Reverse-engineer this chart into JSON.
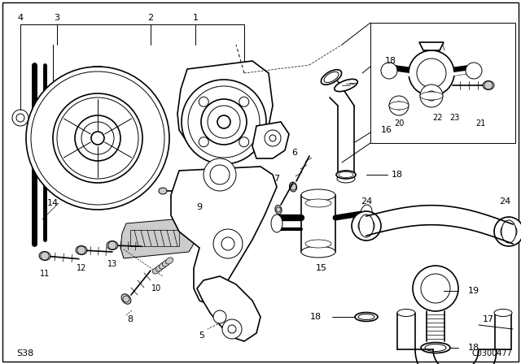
{
  "fig_width": 6.4,
  "fig_height": 4.48,
  "dpi": 100,
  "bg": "#ffffff",
  "bottom_left": "S38",
  "bottom_right": "C0300477",
  "lw_thick": 1.8,
  "lw_med": 1.2,
  "lw_thin": 0.7,
  "lw_hair": 0.5
}
